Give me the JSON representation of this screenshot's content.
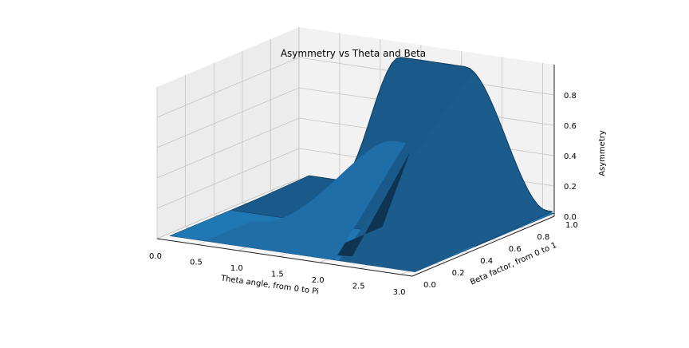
{
  "chart_data": {
    "type": "surface3d",
    "title": "Asymmetry vs Theta and Beta",
    "xlabel": "Theta angle, from 0 to Pi",
    "ylabel": "Beta factor, from 0 to 1",
    "zlabel": "Asymmetry",
    "xlim": [
      0,
      3.14159
    ],
    "ylim": [
      0,
      1
    ],
    "zlim": [
      0,
      1
    ],
    "x_ticks": [
      "0.0",
      "0.5",
      "1.0",
      "1.5",
      "2.0",
      "2.5",
      "3.0"
    ],
    "y_ticks": [
      "0.0",
      "0.2",
      "0.4",
      "0.6",
      "0.8",
      "1.0"
    ],
    "z_ticks": [
      "0.0",
      "0.2",
      "0.4",
      "0.6",
      "0.8"
    ],
    "grid": true,
    "surface_color": "#1f77b4",
    "edge_color": "#123e5e",
    "peak_asymmetry": 0.9,
    "rise_theta": 1.2,
    "fall_theta": 2.6,
    "discontinuity_theta": 2.15,
    "front_peak_asymmetry": 0.58
  }
}
